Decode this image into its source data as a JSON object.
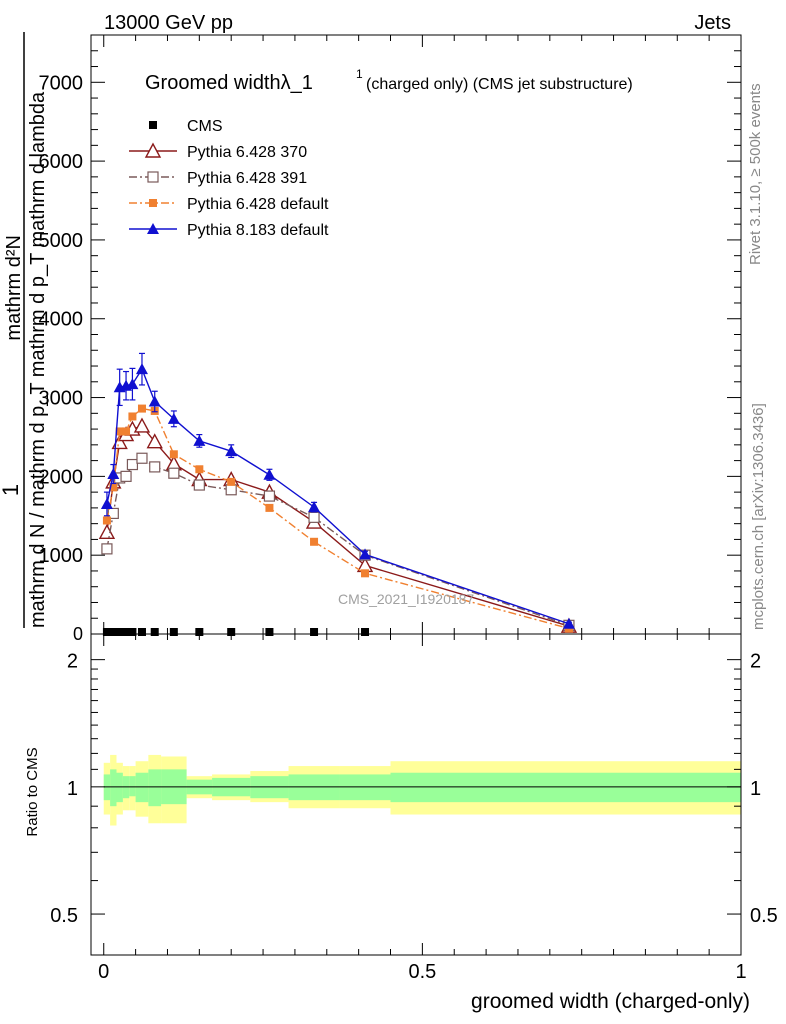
{
  "header": {
    "left": "13000 GeV pp",
    "right": "Jets"
  },
  "side_text": {
    "rivet": "Rivet 3.1.10, ≥ 500k events",
    "mcplots": "mcplots.cern.ch [arXiv:1306.3436]"
  },
  "watermark": "CMS_2021_I1920187",
  "chart_data": [
    {
      "type": "line",
      "title": "Groomed widthλ_1",
      "title_superscript": "1",
      "subtitle": "(charged only) (CMS jet substructure)",
      "ylabel_left": "1",
      "ylabel_num": "mathrm d²N",
      "ylabel_den": "mathrm d N / mathrm d p_T mathrm d p_T mathrm d lambda",
      "xlim": [
        -0.02,
        1.0
      ],
      "ylim": [
        0,
        7600
      ],
      "y_ticks": [
        1000,
        2000,
        3000,
        4000,
        5000,
        6000,
        7000
      ],
      "y_tick_labels": [
        "1000",
        "2000",
        "3000",
        "4000",
        "5000",
        "6000",
        "7000"
      ],
      "y_zero_label": "0",
      "legend": {
        "position": "top-left"
      },
      "series": [
        {
          "name": "CMS",
          "color": "#000000",
          "marker": "square-filled",
          "line": "none",
          "x": [
            0.005,
            0.015,
            0.025,
            0.035,
            0.045,
            0.06,
            0.08,
            0.11,
            0.15,
            0.2,
            0.26,
            0.33,
            0.41
          ],
          "y": [
            5,
            5,
            5,
            5,
            5,
            5,
            5,
            5,
            5,
            5,
            5,
            5,
            5
          ]
        },
        {
          "name": "Pythia 6.428 370",
          "color": "#8b1a1a",
          "marker": "triangle-open",
          "line": "solid",
          "x": [
            0.005,
            0.015,
            0.025,
            0.035,
            0.045,
            0.06,
            0.08,
            0.11,
            0.15,
            0.2,
            0.26,
            0.33,
            0.41,
            0.73
          ],
          "y": [
            1290,
            1930,
            2430,
            2530,
            2600,
            2640,
            2440,
            2160,
            1960,
            1960,
            1800,
            1420,
            870,
            100
          ]
        },
        {
          "name": "Pythia 6.428 391",
          "color": "#7a5a5a",
          "marker": "square-open",
          "line": "dashdot",
          "x": [
            0.005,
            0.015,
            0.025,
            0.035,
            0.045,
            0.06,
            0.08,
            0.11,
            0.15,
            0.2,
            0.26,
            0.33,
            0.41,
            0.73
          ],
          "y": [
            1080,
            1530,
            1980,
            2000,
            2150,
            2230,
            2120,
            2040,
            1890,
            1830,
            1750,
            1480,
            1000,
            110
          ]
        },
        {
          "name": "Pythia 6.428 default",
          "color": "#f08030",
          "marker": "square-filled",
          "line": "dashdot",
          "x": [
            0.005,
            0.015,
            0.025,
            0.035,
            0.045,
            0.06,
            0.08,
            0.11,
            0.15,
            0.2,
            0.26,
            0.33,
            0.41,
            0.73
          ],
          "y": [
            1440,
            1860,
            2570,
            2570,
            2760,
            2860,
            2830,
            2280,
            2090,
            1930,
            1600,
            1170,
            770,
            70
          ]
        },
        {
          "name": "Pythia 8.183 default",
          "color": "#1010d0",
          "marker": "triangle-filled",
          "line": "solid",
          "x": [
            0.005,
            0.015,
            0.025,
            0.035,
            0.045,
            0.06,
            0.08,
            0.11,
            0.15,
            0.2,
            0.26,
            0.33,
            0.41,
            0.73
          ],
          "y": [
            1650,
            2030,
            3130,
            3150,
            3170,
            3360,
            2950,
            2730,
            2450,
            2320,
            2020,
            1610,
            1010,
            130
          ],
          "err": [
            150,
            120,
            230,
            180,
            200,
            200,
            130,
            100,
            80,
            80,
            70,
            60,
            40,
            20
          ]
        }
      ]
    },
    {
      "type": "area",
      "ylabel": "Ratio to CMS",
      "xlabel": "groomed width (charged-only)",
      "xlim": [
        -0.02,
        1.0
      ],
      "ylim": [
        0.4,
        2.3
      ],
      "y_scale": "log",
      "y_ticks": [
        0.5,
        1,
        2
      ],
      "y_tick_labels": [
        "0.5",
        "1",
        "2"
      ],
      "x_ticks": [
        0,
        0.5,
        1
      ],
      "x_tick_labels": [
        "0",
        "0.5",
        "1"
      ],
      "reference_line": 1,
      "bands": {
        "edges": [
          0,
          0.01,
          0.02,
          0.03,
          0.04,
          0.05,
          0.07,
          0.09,
          0.13,
          0.17,
          0.23,
          0.29,
          0.37,
          0.45,
          1.0
        ],
        "green_lo": [
          0.93,
          0.9,
          0.92,
          0.94,
          0.95,
          0.92,
          0.9,
          0.91,
          0.96,
          0.95,
          0.94,
          0.93,
          0.93,
          0.92
        ],
        "green_hi": [
          1.07,
          1.1,
          1.08,
          1.06,
          1.06,
          1.08,
          1.1,
          1.1,
          1.04,
          1.05,
          1.06,
          1.07,
          1.07,
          1.08
        ],
        "yellow_lo": [
          0.86,
          0.81,
          0.86,
          0.88,
          0.88,
          0.85,
          0.82,
          0.82,
          0.94,
          0.93,
          0.92,
          0.89,
          0.89,
          0.86
        ],
        "yellow_hi": [
          1.14,
          1.19,
          1.14,
          1.12,
          1.12,
          1.15,
          1.19,
          1.18,
          1.06,
          1.07,
          1.09,
          1.12,
          1.12,
          1.15
        ],
        "green_color": "#99ff99",
        "yellow_color": "#ffff99"
      }
    }
  ]
}
